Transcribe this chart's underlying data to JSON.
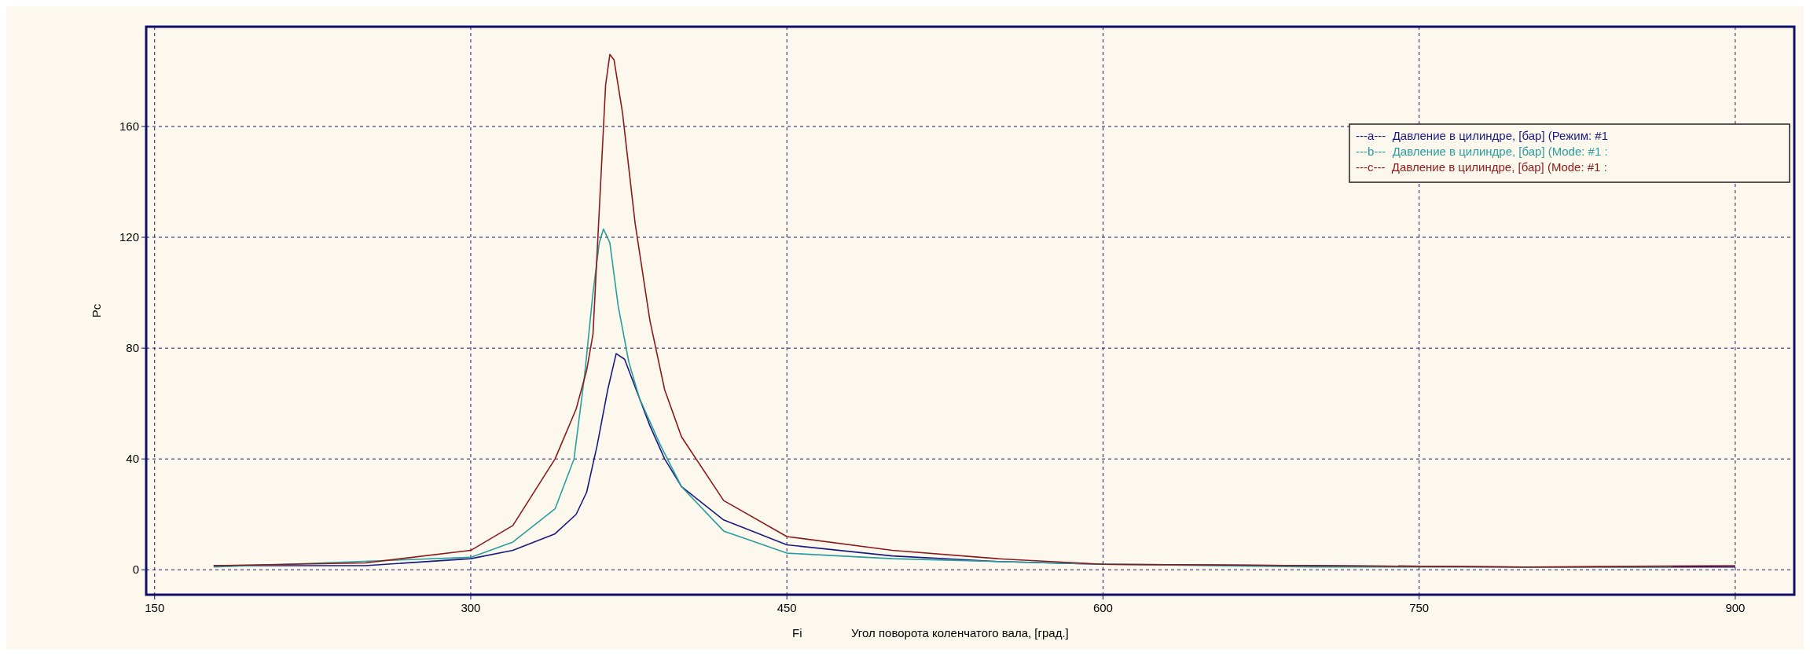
{
  "chart_data": {
    "type": "line",
    "xlabel": "Угол поворота коленчатого вала, [град.]",
    "ylabel": "Pc",
    "annotations": [
      "Fi"
    ],
    "xlim": [
      146,
      928
    ],
    "xticks": [
      150,
      300,
      450,
      600,
      750,
      900
    ],
    "ylim": [
      -9,
      196
    ],
    "yticks": [
      0,
      40,
      80,
      120,
      160
    ],
    "grid": true,
    "legend": "top right",
    "line_style": "solid",
    "marker": "none",
    "series": [
      {
        "name": "---a---  Давление в цилиндре, [бар] (Режим: #1",
        "color": "#1a1a80",
        "x": [
          178,
          250,
          300,
          320,
          340,
          350,
          355,
          360,
          365,
          369,
          373,
          378,
          385,
          392,
          400,
          420,
          450,
          500,
          550,
          600,
          700,
          800,
          900
        ],
        "values": [
          1.5,
          1.5,
          4,
          7,
          13,
          20,
          28,
          45,
          65,
          78,
          76,
          66,
          52,
          40,
          30,
          18,
          9,
          5,
          3,
          2,
          1.5,
          1,
          1
        ]
      },
      {
        "name": "---b---  Давление в цилиндре, [бар] (Mode: #1 :",
        "color": "#2a9d9d",
        "x": [
          178,
          300,
          320,
          340,
          349,
          354,
          358,
          361,
          363,
          366,
          370,
          375,
          380,
          390,
          400,
          420,
          450,
          500,
          550,
          600,
          700,
          800,
          870
        ],
        "values": [
          1,
          4.5,
          10,
          22,
          40,
          70,
          100,
          118,
          123,
          118,
          95,
          75,
          62,
          45,
          30,
          14,
          6,
          4,
          3,
          2,
          1,
          1,
          1
        ]
      },
      {
        "name": "---c---  Давление в цилиндре, [бар] (Mode: #1 :",
        "color": "#8b1a1a",
        "x": [
          178,
          250,
          300,
          320,
          340,
          350,
          355,
          358,
          361,
          364,
          366,
          368,
          372,
          378,
          385,
          392,
          400,
          420,
          450,
          500,
          550,
          600,
          700,
          800,
          900
        ],
        "values": [
          1.5,
          2.5,
          7,
          16,
          40,
          58,
          72,
          85,
          130,
          175,
          186,
          184,
          165,
          125,
          90,
          65,
          48,
          25,
          12,
          7,
          4,
          2,
          1.5,
          1,
          1.5
        ]
      }
    ]
  }
}
